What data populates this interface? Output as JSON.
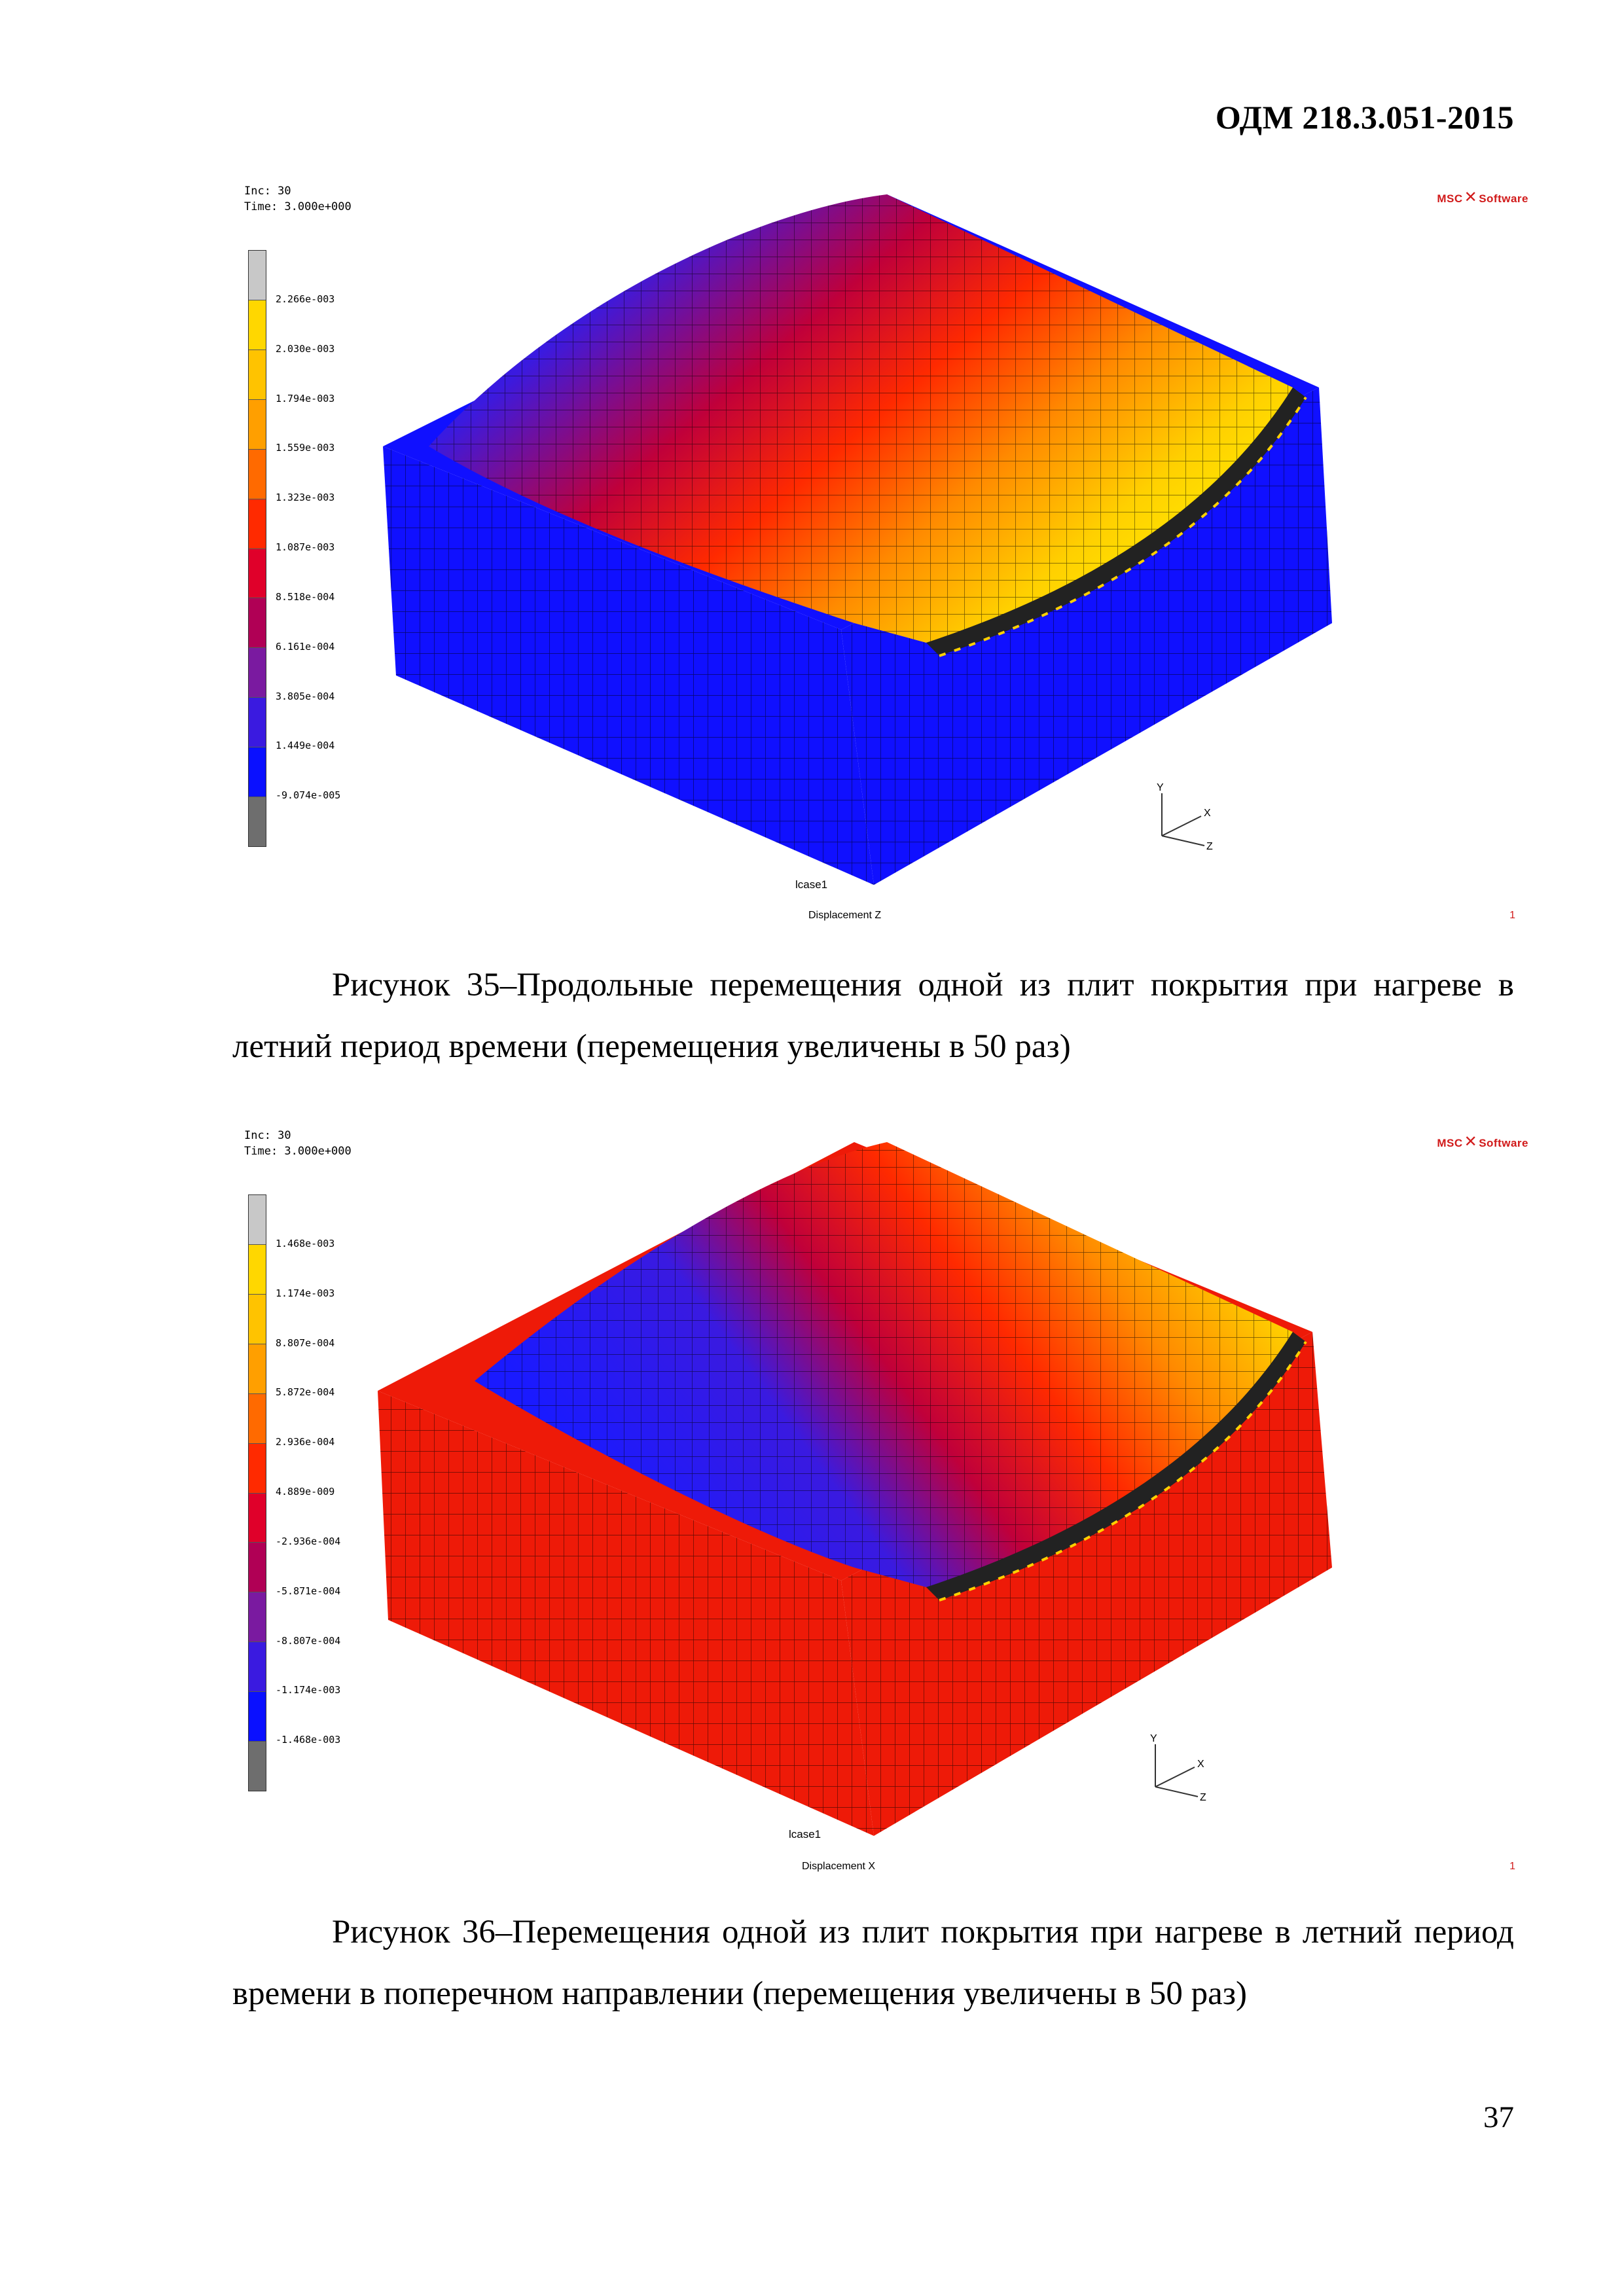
{
  "header": {
    "doc_code": "ОДМ 218.3.051-2015"
  },
  "figures": [
    {
      "inc": "Inc:  30",
      "time": "Time:  3.000e+000",
      "logo": {
        "left": "MSC",
        "right": "Software"
      },
      "legend": {
        "labels": [
          "2.266e-003",
          "2.030e-003",
          "1.794e-003",
          "1.559e-003",
          "1.323e-003",
          "1.087e-003",
          "8.518e-004",
          "6.161e-004",
          "3.805e-004",
          "1.449e-004",
          "-9.074e-005"
        ],
        "colors": [
          "#c8c8c8",
          "#ffd700",
          "#ffc300",
          "#ff9f00",
          "#ff6a00",
          "#ff2a00",
          "#e0002a",
          "#b00055",
          "#7a1aa0",
          "#3a1ae0",
          "#0a10ff",
          "#6e6e6e"
        ]
      },
      "lcase": "lcase1",
      "displacement": "Displacement Z",
      "frame_number": "1",
      "axes": {
        "y": "Y",
        "x": "X",
        "z": "Z"
      }
    },
    {
      "inc": "Inc:  30",
      "time": "Time:  3.000e+000",
      "logo": {
        "left": "MSC",
        "right": "Software"
      },
      "legend": {
        "labels": [
          "1.468e-003",
          "1.174e-003",
          "8.807e-004",
          "5.872e-004",
          "2.936e-004",
          "4.889e-009",
          "-2.936e-004",
          "-5.871e-004",
          "-8.807e-004",
          "-1.174e-003",
          "-1.468e-003"
        ],
        "colors": [
          "#c8c8c8",
          "#ffd700",
          "#ffc300",
          "#ff9f00",
          "#ff6a00",
          "#ff2a00",
          "#e0002a",
          "#b00055",
          "#7a1aa0",
          "#3a1ae0",
          "#0a10ff",
          "#6e6e6e"
        ]
      },
      "lcase": "lcase1",
      "displacement": "Displacement X",
      "frame_number": "1",
      "axes": {
        "y": "Y",
        "x": "X",
        "z": "Z"
      }
    }
  ],
  "captions": [
    "Рисунок 35–Продольные перемещения одной из плит покрытия при нагреве в летний период времени (перемещения увеличены в 50 раз)",
    "Рисунок 36–Перемещения одной из плит покрытия при нагреве в летний период времени в поперечном направлении (перемещения увеличены в 50 раз)"
  ],
  "page_number": "37"
}
